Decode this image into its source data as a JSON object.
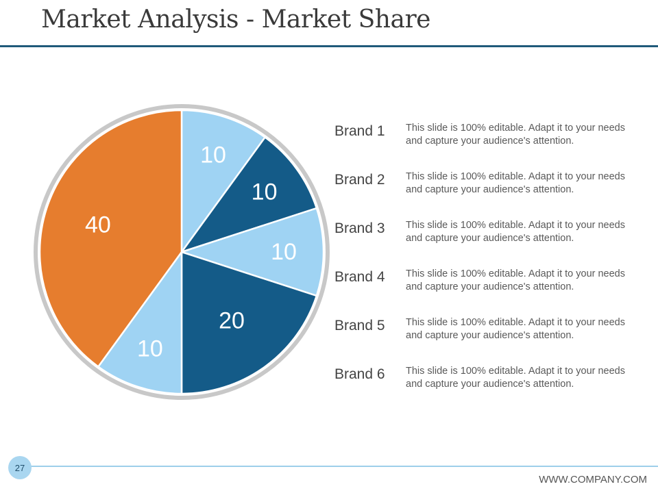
{
  "slide": {
    "title": "Market Analysis - Market Share",
    "page_number": "27",
    "footer": "WWW.COMPANY.COM"
  },
  "colors": {
    "orange": "#e67d2e",
    "light_blue": "#9fd3f3",
    "dark_blue": "#145b88",
    "ring": "#c8c8c8",
    "rule": "#1f5a7a"
  },
  "legend": [
    {
      "label": "Brand 1",
      "text": "This slide is 100% editable. Adapt it to your needs and capture your audience's attention."
    },
    {
      "label": "Brand 2",
      "text": "This slide is 100% editable. Adapt it to your needs and capture your audience's attention."
    },
    {
      "label": "Brand 3",
      "text": "This slide is 100% editable. Adapt it to your needs and capture your audience's attention."
    },
    {
      "label": "Brand 4",
      "text": "This slide is 100% editable. Adapt it to your needs and capture your audience's attention."
    },
    {
      "label": "Brand 5",
      "text": "This slide is 100% editable. Adapt it to your needs and capture your audience's attention."
    },
    {
      "label": "Brand 6",
      "text": "This slide is 100% editable. Adapt it to your needs and capture your audience's attention."
    }
  ],
  "chart_data": {
    "type": "pie",
    "slices": [
      {
        "value": 10,
        "label": "10",
        "color": "#9fd3f3"
      },
      {
        "value": 10,
        "label": "10",
        "color": "#145b88"
      },
      {
        "value": 10,
        "label": "10",
        "color": "#9fd3f3"
      },
      {
        "value": 20,
        "label": "20",
        "color": "#145b88"
      },
      {
        "value": 10,
        "label": "10",
        "color": "#9fd3f3"
      },
      {
        "value": 40,
        "label": "40",
        "color": "#e67d2e"
      }
    ],
    "start": "12 o'clock, clockwise"
  }
}
